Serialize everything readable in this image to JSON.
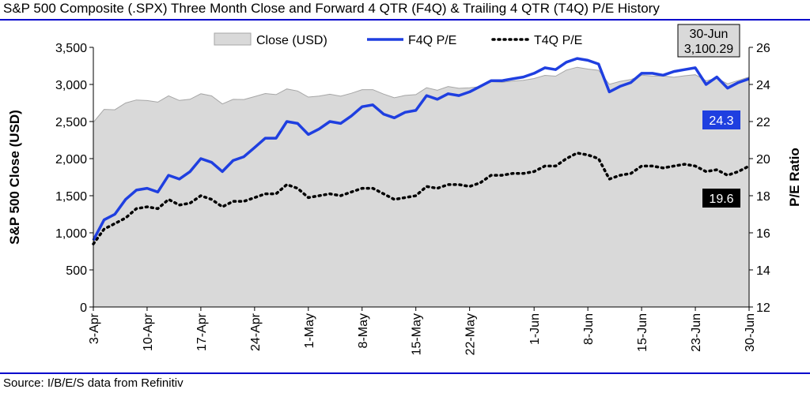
{
  "title": "S&P 500 Composite (.SPX) Three Month Close and Forward 4 QTR (F4Q) & Trailing 4 QTR (T4Q) P/E History",
  "source": "Source: I/B/E/S data from Refinitiv",
  "colors": {
    "close_fill": "#d9d9d9",
    "close_stroke": "#a6a6a6",
    "f4q": "#1f3fe0",
    "t4q": "#000000",
    "f4q_label_bg": "#1f3fe0",
    "t4q_label_bg": "#000000",
    "rule": "#0000cc"
  },
  "chart_data": {
    "type": "area",
    "ylabel_left": "S&P 500 Close (USD)",
    "ylabel_right": "P/E Ratio",
    "ylim_left": [
      0,
      3500
    ],
    "ylim_right": [
      12,
      26
    ],
    "yticks_left": [
      "0",
      "500",
      "1,000",
      "1,500",
      "2,000",
      "2,500",
      "3,000",
      "3,500"
    ],
    "yticks_right": [
      "12",
      "14",
      "16",
      "18",
      "20",
      "22",
      "24",
      "26"
    ],
    "xticks": [
      "3-Apr",
      "10-Apr",
      "17-Apr",
      "24-Apr",
      "1-May",
      "8-May",
      "15-May",
      "22-May",
      "1-Jun",
      "8-Jun",
      "15-Jun",
      "23-Jun",
      "30-Jun"
    ],
    "xtick_index": [
      0,
      5,
      10,
      15,
      20,
      25,
      30,
      35,
      41,
      46,
      51,
      56,
      61
    ],
    "legend": [
      "Close (USD)",
      "F4Q P/E",
      "T4Q P/E"
    ],
    "callout": {
      "date": "30-Jun",
      "value": "3,100.29"
    },
    "end_labels": {
      "f4q": "24.3",
      "t4q": "19.6"
    },
    "series": [
      {
        "name": "Close (USD)",
        "axis": "left",
        "values": [
          2489,
          2664,
          2659,
          2750,
          2790,
          2783,
          2762,
          2847,
          2784,
          2800,
          2875,
          2846,
          2737,
          2799,
          2797,
          2836,
          2878,
          2863,
          2939,
          2912,
          2830,
          2843,
          2868,
          2842,
          2881,
          2930,
          2930,
          2870,
          2820,
          2852,
          2863,
          2955,
          2922,
          2972,
          2948,
          2955,
          2971,
          3036,
          3029,
          3045,
          3055,
          3080,
          3122,
          3112,
          3194,
          3232,
          3207,
          3190,
          3002,
          3041,
          3066,
          3124,
          3113,
          3115,
          3097,
          3117,
          3131,
          3050,
          3084,
          3009,
          3053,
          3100
        ]
      },
      {
        "name": "F4Q P/E",
        "axis": "right",
        "values": [
          15.6,
          16.7,
          17.0,
          17.8,
          18.3,
          18.4,
          18.2,
          19.1,
          18.9,
          19.3,
          20.0,
          19.8,
          19.3,
          19.9,
          20.1,
          20.6,
          21.1,
          21.1,
          22.0,
          21.9,
          21.3,
          21.6,
          22.0,
          21.9,
          22.3,
          22.8,
          22.9,
          22.4,
          22.2,
          22.5,
          22.6,
          23.4,
          23.2,
          23.5,
          23.4,
          23.6,
          23.9,
          24.2,
          24.2,
          24.3,
          24.4,
          24.6,
          24.9,
          24.8,
          25.2,
          25.4,
          25.3,
          25.1,
          23.6,
          23.9,
          24.1,
          24.6,
          24.6,
          24.5,
          24.7,
          24.8,
          24.9,
          24.0,
          24.4,
          23.8,
          24.1,
          24.3
        ]
      },
      {
        "name": "T4Q P/E",
        "axis": "right",
        "values": [
          15.4,
          16.2,
          16.5,
          16.8,
          17.3,
          17.4,
          17.3,
          17.8,
          17.5,
          17.6,
          18.0,
          17.8,
          17.4,
          17.7,
          17.7,
          17.9,
          18.1,
          18.1,
          18.6,
          18.4,
          17.9,
          18.0,
          18.1,
          18.0,
          18.2,
          18.4,
          18.4,
          18.1,
          17.8,
          17.9,
          18.0,
          18.5,
          18.4,
          18.6,
          18.6,
          18.5,
          18.7,
          19.1,
          19.1,
          19.2,
          19.2,
          19.3,
          19.6,
          19.6,
          20.0,
          20.3,
          20.2,
          20.0,
          18.9,
          19.1,
          19.2,
          19.6,
          19.6,
          19.5,
          19.6,
          19.7,
          19.6,
          19.3,
          19.4,
          19.1,
          19.3,
          19.6
        ]
      }
    ]
  }
}
